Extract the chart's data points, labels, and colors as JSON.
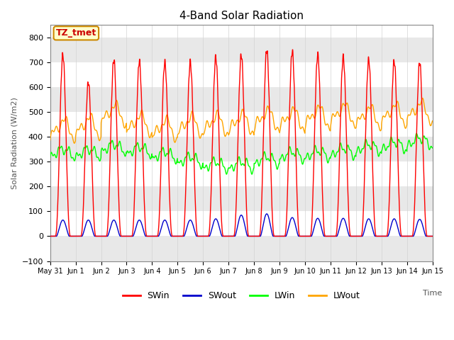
{
  "title": "4-Band Solar Radiation",
  "ylabel": "Solar Radiation (W/m2)",
  "xlabel": "Time",
  "annotation": "TZ_tmet",
  "ylim": [
    -100,
    850
  ],
  "yticks": [
    -100,
    0,
    100,
    200,
    300,
    400,
    500,
    600,
    700,
    800
  ],
  "n_days": 15,
  "colors": {
    "SWin": "#ff0000",
    "SWout": "#0000cc",
    "LWin": "#00ff00",
    "LWout": "#ffa500"
  },
  "xtick_labels": [
    "May 31",
    "Jun 1",
    "Jun 2",
    "Jun 3",
    "Jun 4",
    "Jun 5",
    "Jun 6",
    "Jun 7",
    "Jun 8",
    "Jun 9",
    "Jun 10",
    "Jun 11",
    "Jun 12",
    "Jun 13",
    "Jun 14",
    "Jun 15"
  ],
  "annotation_facecolor": "#ffffcc",
  "annotation_edgecolor": "#cc8800",
  "annotation_textcolor": "#cc0000",
  "fig_facecolor": "#ffffff",
  "ax_facecolor": "#ffffff",
  "band_color": "#e8e8e8"
}
